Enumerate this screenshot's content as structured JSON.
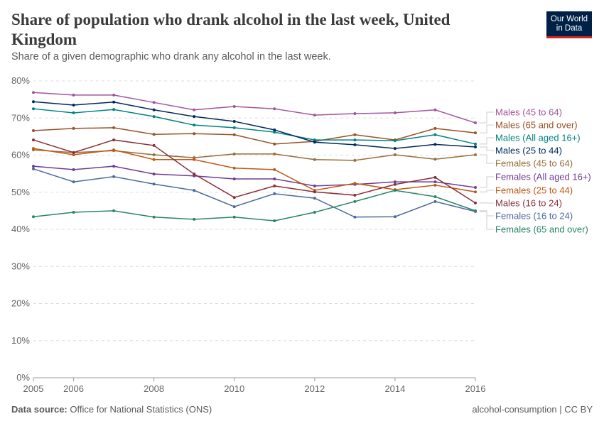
{
  "header": {
    "title": "Share of population who drank alcohol in the last week, United Kingdom",
    "subtitle": "Share of a given demographic who drank any alcohol in the last week.",
    "logo": [
      "Our World",
      "in Data"
    ]
  },
  "footer": {
    "source_label": "Data source:",
    "source": "Office for National Statistics (ONS)",
    "slug": "alcohol-consumption | CC BY"
  },
  "chart_data": {
    "type": "line",
    "title": "Share of population who drank alcohol in the last week, United Kingdom",
    "x": [
      2005,
      2006,
      2007,
      2008,
      2009,
      2010,
      2011,
      2012,
      2013,
      2014,
      2015,
      2016
    ],
    "x_ticks": [
      "2005",
      "2006",
      "2008",
      "2010",
      "2012",
      "2014",
      "2016"
    ],
    "y_ticks": [
      "0%",
      "10%",
      "20%",
      "30%",
      "40%",
      "50%",
      "60%",
      "70%",
      "80%"
    ],
    "ylim": [
      0,
      80
    ],
    "grid": "horizontal dashed",
    "legend": "right, inline labels",
    "series": [
      {
        "name": "Males (45 to 64)",
        "color": "#a2559c",
        "values": [
          76.9,
          76.2,
          76.2,
          74.2,
          72.2,
          73.1,
          72.5,
          70.8,
          71.2,
          71.4,
          72.2,
          68.7
        ]
      },
      {
        "name": "Males (65 and over)",
        "color": "#9a5129",
        "values": [
          66.6,
          67.2,
          67.4,
          65.6,
          65.8,
          65.5,
          63.0,
          63.7,
          65.5,
          64.1,
          67.2,
          66.0
        ]
      },
      {
        "name": "Males (All aged 16+)",
        "color": "#00847e",
        "values": [
          72.5,
          71.4,
          72.3,
          70.4,
          68.1,
          67.4,
          66.2,
          64.1,
          64.1,
          63.9,
          65.5,
          63.0
        ]
      },
      {
        "name": "Males (25 to 44)",
        "color": "#00295b",
        "values": [
          74.4,
          73.5,
          74.3,
          72.2,
          70.4,
          69.1,
          66.8,
          63.5,
          62.8,
          61.8,
          62.9,
          62.2
        ]
      },
      {
        "name": "Females (45 to 64)",
        "color": "#996d39",
        "values": [
          61.4,
          60.7,
          61.2,
          60.1,
          59.3,
          60.3,
          60.3,
          58.8,
          58.6,
          60.1,
          58.9,
          60.1
        ]
      },
      {
        "name": "Females (All aged 16+)",
        "color": "#6d3e91",
        "values": [
          57.0,
          56.1,
          57.0,
          54.9,
          54.4,
          53.6,
          53.6,
          51.7,
          52.1,
          52.8,
          52.8,
          51.3
        ]
      },
      {
        "name": "Females (25 to 44)",
        "color": "#c05917",
        "values": [
          61.8,
          60.1,
          61.4,
          58.8,
          58.8,
          56.5,
          56.1,
          50.5,
          52.4,
          50.7,
          51.9,
          50.1
        ]
      },
      {
        "name": "Males (16 to 24)",
        "color": "#883039",
        "values": [
          64.1,
          60.7,
          64.1,
          62.6,
          54.9,
          48.6,
          51.7,
          50.1,
          49.2,
          52.1,
          54.0,
          47.1
        ]
      },
      {
        "name": "Females (16 to 24)",
        "color": "#4c6a9c",
        "values": [
          56.3,
          52.8,
          54.2,
          52.2,
          50.5,
          46.1,
          49.6,
          48.4,
          43.3,
          43.4,
          47.5,
          44.8
        ]
      },
      {
        "name": "Females (65 and over)",
        "color": "#2c8465",
        "values": [
          43.4,
          44.6,
          45.0,
          43.3,
          42.7,
          43.3,
          42.3,
          44.6,
          47.5,
          50.5,
          48.8,
          45.0
        ]
      }
    ]
  }
}
